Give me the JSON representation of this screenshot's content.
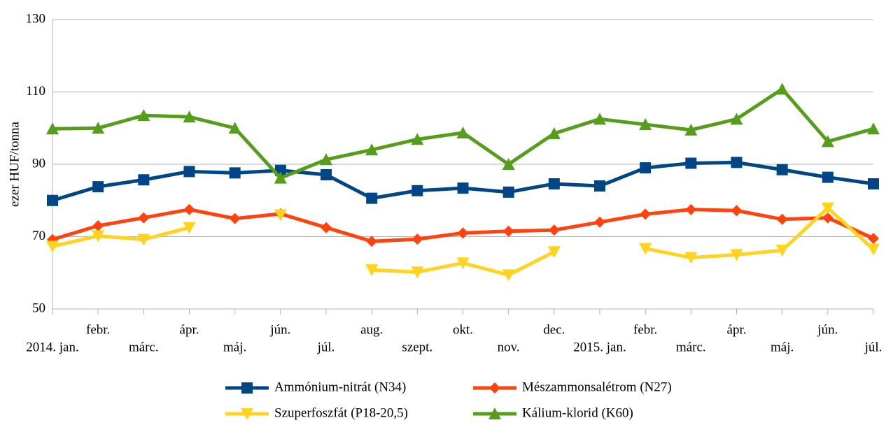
{
  "chart_data": {
    "type": "line",
    "categories": [
      "2014. jan.",
      "febr.",
      "márc.",
      "ápr.",
      "máj.",
      "jún.",
      "júl.",
      "aug.",
      "szept.",
      "okt.",
      "nov.",
      "dec.",
      "2015. jan.",
      "febr.",
      "márc.",
      "ápr.",
      "máj.",
      "jún.",
      "júl."
    ],
    "ylabel": "ezer HUF/tonna",
    "ylim": [
      50,
      130
    ],
    "yticks": [
      50,
      70,
      90,
      110,
      130
    ],
    "grid": true,
    "series": [
      {
        "name": "Ammónium-nitrát (N34)",
        "color": "#004586",
        "marker": "square",
        "values": [
          80,
          83.8,
          85.7,
          88,
          87.6,
          88.3,
          87.1,
          80.6,
          82.7,
          83.4,
          82.3,
          84.6,
          84,
          89,
          90.3,
          90.5,
          88.5,
          86.4,
          84.6
        ]
      },
      {
        "name": "Mészammonsalétrom (N27)",
        "color": "#ff420e",
        "marker": "diamond",
        "values": [
          69.2,
          73,
          75.2,
          77.5,
          75,
          76.3,
          72.5,
          68.7,
          69.3,
          71,
          71.5,
          71.8,
          74,
          76.2,
          77.5,
          77.2,
          74.8,
          75.2,
          69.5
        ]
      },
      {
        "name": "Szuperfoszfát (P18-20,5)",
        "color": "#ffd320",
        "marker": "triangle-down",
        "values": [
          67.3,
          70.2,
          69.2,
          72.5,
          null,
          76,
          null,
          60.8,
          60.2,
          62.7,
          59.4,
          65.8,
          null,
          66.7,
          64.2,
          65,
          66.2,
          77.9,
          66.5
        ]
      },
      {
        "name": "Kálium-klorid (K60)",
        "color": "#579d1c",
        "marker": "triangle-up",
        "values": [
          99.8,
          100,
          103.5,
          103.1,
          100,
          86.2,
          91.3,
          94,
          96.9,
          98.7,
          90,
          98.5,
          102.5,
          101,
          99.5,
          102.5,
          110.8,
          96.3,
          99.8
        ]
      }
    ]
  }
}
